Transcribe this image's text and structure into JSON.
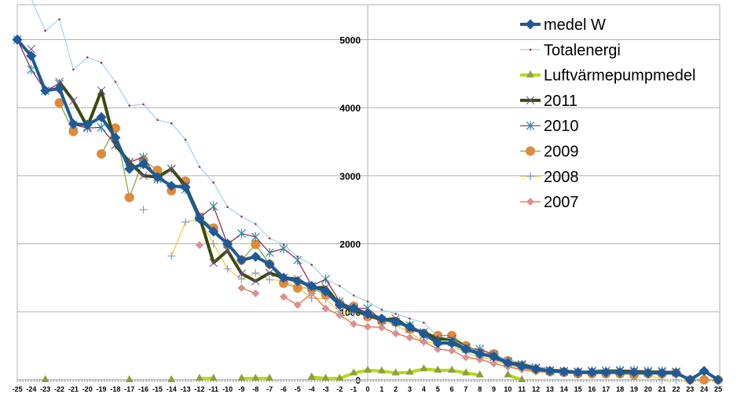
{
  "chart_data": {
    "type": "line",
    "title": "",
    "xlabel": "",
    "ylabel": "",
    "x": [
      -25,
      -24,
      -23,
      -22,
      -21,
      -20,
      -19,
      -18,
      -17,
      -16,
      -15,
      -14,
      -13,
      -12,
      -11,
      -10,
      -9,
      -8,
      -7,
      -6,
      -5,
      -4,
      -3,
      -2,
      -1,
      0,
      1,
      2,
      3,
      4,
      5,
      6,
      7,
      8,
      9,
      10,
      11,
      12,
      13,
      14,
      15,
      16,
      17,
      18,
      19,
      20,
      21,
      22,
      23,
      24,
      25
    ],
    "ylim": [
      0,
      5500
    ],
    "yticks": [
      0,
      1000,
      2000,
      3000,
      4000,
      5000
    ],
    "grid": true,
    "legend_position": "top-right",
    "series": [
      {
        "name": "medel W",
        "color": "#1f5a96",
        "marker": "diamond",
        "values": [
          5000,
          4760,
          4250,
          4280,
          3760,
          3750,
          3860,
          3560,
          3100,
          3170,
          2980,
          2850,
          2830,
          2370,
          2180,
          2000,
          1760,
          1810,
          1700,
          1500,
          1450,
          1380,
          1300,
          1100,
          1050,
          970,
          900,
          850,
          780,
          680,
          540,
          540,
          450,
          380,
          340,
          250,
          200,
          160,
          130,
          120,
          110,
          110,
          110,
          110,
          110,
          100,
          100,
          100,
          0,
          130,
          0
        ]
      },
      {
        "name": "Totalenergi",
        "color": "#8fc8f0",
        "marker": "dot",
        "values": [
          5750,
          5600,
          5130,
          5300,
          4560,
          4740,
          4660,
          4380,
          4030,
          4050,
          3820,
          3770,
          3530,
          3130,
          2900,
          2540,
          2400,
          2290,
          2080,
          1990,
          1810,
          1690,
          1480,
          1380,
          1240,
          1150,
          1030,
          970,
          900,
          840,
          640,
          600,
          480,
          420,
          350,
          300,
          250,
          200,
          150,
          120,
          130,
          130,
          130,
          130,
          120,
          110,
          110,
          100,
          null,
          null,
          null
        ]
      },
      {
        "name": "Luftvärmepumpmedel",
        "color": "#a8c820",
        "marker": "triangle",
        "values": [
          null,
          null,
          0,
          null,
          null,
          null,
          null,
          null,
          0,
          null,
          null,
          0,
          null,
          20,
          20,
          null,
          20,
          20,
          20,
          null,
          null,
          40,
          20,
          20,
          100,
          140,
          130,
          100,
          110,
          160,
          140,
          140,
          100,
          70,
          null,
          70,
          0,
          null,
          null,
          null,
          null,
          null,
          null,
          null,
          null,
          null,
          null,
          null,
          null,
          null,
          null
        ]
      },
      {
        "name": "2011",
        "color": "#3a4a10",
        "marker": "x",
        "values": [
          null,
          4860,
          null,
          4380,
          4100,
          3720,
          4250,
          3450,
          3200,
          3000,
          2980,
          3100,
          2850,
          2400,
          1720,
          1900,
          1560,
          1450,
          1570,
          1500,
          1480,
          1350,
          1360,
          1100,
          1020,
          950,
          880,
          900,
          750,
          700,
          600,
          600,
          480,
          400,
          330,
          250,
          230,
          180,
          140,
          130,
          110,
          120,
          130,
          130,
          120,
          110,
          110,
          110,
          null,
          null,
          null
        ]
      },
      {
        "name": "2010",
        "color": "#2a8aa8",
        "marker": "asterisk",
        "values": [
          5000,
          4560,
          4250,
          4350,
          3750,
          3700,
          3710,
          3450,
          3200,
          3270,
          2950,
          3100,
          2800,
          2380,
          2550,
          1990,
          2150,
          2100,
          1870,
          1930,
          1760,
          1380,
          1480,
          1150,
          1050,
          1050,
          880,
          850,
          800,
          650,
          560,
          560,
          460,
          450,
          370,
          270,
          220,
          170,
          130,
          120,
          120,
          130,
          130,
          140,
          140,
          130,
          130,
          120,
          null,
          null,
          null
        ]
      },
      {
        "name": "2009",
        "color": "#e08a3c",
        "marker": "circle",
        "values": [
          null,
          null,
          null,
          4070,
          3650,
          null,
          3320,
          3700,
          2680,
          3230,
          3080,
          2780,
          2920,
          2390,
          2230,
          1990,
          1760,
          1990,
          1700,
          1420,
          1350,
          1350,
          1250,
          1120,
          1080,
          930,
          870,
          850,
          750,
          680,
          650,
          650,
          500,
          400,
          380,
          280,
          210,
          150,
          120,
          110,
          90,
          90,
          90,
          90,
          70,
          90,
          90,
          100,
          0,
          0,
          0
        ]
      },
      {
        "name": "2008",
        "color": "#7f9fd0",
        "marker": "plus",
        "values": [
          null,
          null,
          null,
          null,
          null,
          null,
          null,
          null,
          null,
          2500,
          null,
          1820,
          2320,
          2360,
          2000,
          1630,
          1480,
          1570,
          1470,
          1460,
          1360,
          1200,
          1190,
          1000,
          980,
          960,
          880,
          800,
          700,
          550,
          550,
          500,
          400,
          330,
          300,
          200,
          170,
          130,
          120,
          110,
          100,
          100,
          100,
          100,
          90,
          80,
          0,
          0,
          0,
          0,
          0
        ]
      },
      {
        "name": "2007",
        "color": "#d89090",
        "marker": "diamond",
        "values": [
          null,
          null,
          null,
          null,
          null,
          null,
          null,
          null,
          null,
          null,
          null,
          null,
          null,
          1980,
          null,
          null,
          1350,
          1270,
          null,
          1220,
          1100,
          1270,
          1050,
          950,
          820,
          780,
          770,
          680,
          620,
          560,
          450,
          430,
          330,
          300,
          240,
          190,
          150,
          120,
          110,
          100,
          90,
          90,
          90,
          100,
          90,
          100,
          90,
          90,
          null,
          null,
          null
        ]
      }
    ]
  }
}
